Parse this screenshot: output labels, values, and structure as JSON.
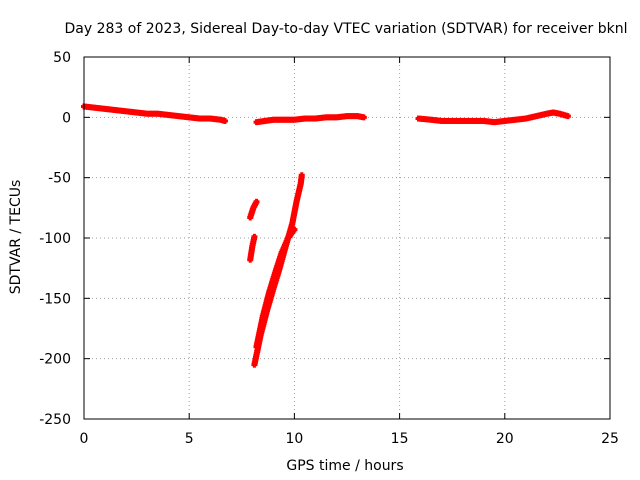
{
  "chart_data": {
    "type": "scatter",
    "title": "Day 283 of 2023, Sidereal Day-to-day VTEC variation (SDTVAR) for receiver bknl",
    "xlabel": "GPS time / hours",
    "ylabel": "SDTVAR / TECUs",
    "xlim": [
      0,
      25
    ],
    "ylim": [
      -250,
      50
    ],
    "xticks": [
      0,
      5,
      10,
      15,
      20,
      25
    ],
    "yticks": [
      50,
      0,
      -50,
      -100,
      -150,
      -200,
      -250
    ],
    "grid": true,
    "series_color": "#ff0000",
    "series": [
      {
        "name": "track-1",
        "points": [
          [
            0,
            9
          ],
          [
            0.5,
            8
          ],
          [
            1,
            7
          ],
          [
            1.5,
            6
          ],
          [
            2,
            5
          ],
          [
            2.5,
            4
          ],
          [
            3,
            3
          ],
          [
            3.5,
            3
          ],
          [
            4,
            2
          ],
          [
            4.5,
            1
          ],
          [
            5,
            0
          ],
          [
            5.5,
            -1
          ],
          [
            6,
            -1
          ],
          [
            6.5,
            -2
          ],
          [
            6.7,
            -3
          ]
        ]
      },
      {
        "name": "track-2",
        "points": [
          [
            8.2,
            -4
          ],
          [
            8.6,
            -3
          ],
          [
            9,
            -2
          ],
          [
            9.5,
            -2
          ],
          [
            10,
            -2
          ],
          [
            10.5,
            -1
          ],
          [
            11,
            -1
          ],
          [
            11.5,
            0
          ],
          [
            12,
            0
          ],
          [
            12.5,
            1
          ],
          [
            13,
            1
          ],
          [
            13.3,
            0
          ]
        ]
      },
      {
        "name": "track-3",
        "points": [
          [
            15.9,
            -1
          ],
          [
            16.5,
            -2
          ],
          [
            17,
            -3
          ],
          [
            17.5,
            -3
          ],
          [
            18,
            -3
          ],
          [
            18.5,
            -3
          ],
          [
            19,
            -3
          ],
          [
            19.5,
            -4
          ],
          [
            20,
            -3
          ],
          [
            20.5,
            -2
          ],
          [
            21,
            -1
          ],
          [
            21.5,
            1
          ],
          [
            22,
            3
          ],
          [
            22.3,
            4
          ],
          [
            22.6,
            3
          ],
          [
            23,
            1
          ]
        ]
      },
      {
        "name": "drop-1",
        "points": [
          [
            8.1,
            -205
          ],
          [
            8.4,
            -180
          ],
          [
            8.7,
            -160
          ],
          [
            9,
            -142
          ],
          [
            9.3,
            -125
          ],
          [
            9.6,
            -106
          ],
          [
            9.9,
            -88
          ],
          [
            10.1,
            -70
          ],
          [
            10.3,
            -55
          ],
          [
            10.35,
            -48
          ]
        ]
      },
      {
        "name": "drop-2",
        "points": [
          [
            8.2,
            -190
          ],
          [
            8.5,
            -165
          ],
          [
            8.8,
            -145
          ],
          [
            9.1,
            -128
          ],
          [
            9.4,
            -112
          ],
          [
            9.7,
            -100
          ],
          [
            10,
            -93
          ]
        ]
      },
      {
        "name": "drop-3",
        "points": [
          [
            7.9,
            -118
          ],
          [
            8.0,
            -107
          ],
          [
            8.1,
            -99
          ]
        ]
      },
      {
        "name": "drop-4",
        "points": [
          [
            7.9,
            -83
          ],
          [
            8.05,
            -75
          ],
          [
            8.2,
            -70
          ]
        ]
      }
    ]
  }
}
